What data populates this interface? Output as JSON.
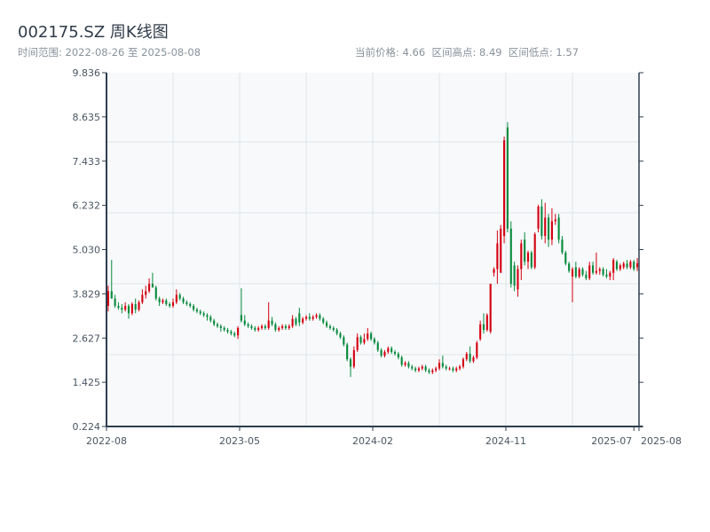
{
  "header": {
    "title": "002175.SZ 周K线图",
    "range_text": "时间范围: 2022-08-26 至 2025-08-08",
    "stats_text": "当前价格: 4.66  区间高点: 8.49  区间低点: 1.57"
  },
  "colors": {
    "up": "#d4000f",
    "down": "#078a3c",
    "plot_bg": "#f7f9fb",
    "axis": "#2e3d4f",
    "grid": "#e1e5ea"
  },
  "chart_data": {
    "type": "candlestick",
    "title": "002175.SZ 周K线图",
    "current_price": 4.66,
    "range_high": 8.49,
    "range_low": 1.57,
    "ylim": [
      0.224,
      9.836
    ],
    "y_ticks": [
      "0.224",
      "1.425",
      "2.627",
      "3.829",
      "5.030",
      "6.232",
      "7.433",
      "8.635",
      "9.836"
    ],
    "x_ticks": [
      {
        "label": "2022-08",
        "week": 0
      },
      {
        "label": "2023-05",
        "week": 39
      },
      {
        "label": "2024-02",
        "week": 78
      },
      {
        "label": "2024-11",
        "week": 117
      },
      {
        "label": "2025-07",
        "week": 154.5
      },
      {
        "label": "2025-08",
        "week": 156
      }
    ],
    "total_weeks": 156,
    "grid": true,
    "ohlc_order": [
      "open",
      "high",
      "low",
      "close"
    ],
    "candles": [
      [
        3.5,
        4.05,
        3.35,
        3.9
      ],
      [
        3.9,
        4.75,
        3.7,
        3.7
      ],
      [
        3.7,
        3.8,
        3.45,
        3.5
      ],
      [
        3.5,
        3.6,
        3.4,
        3.45
      ],
      [
        3.45,
        3.55,
        3.3,
        3.4
      ],
      [
        3.4,
        3.6,
        3.35,
        3.5
      ],
      [
        3.5,
        3.55,
        3.15,
        3.3
      ],
      [
        3.3,
        3.6,
        3.25,
        3.55
      ],
      [
        3.55,
        3.7,
        3.3,
        3.4
      ],
      [
        3.4,
        3.65,
        3.35,
        3.6
      ],
      [
        3.6,
        3.95,
        3.55,
        3.8
      ],
      [
        3.8,
        4.05,
        3.7,
        3.9
      ],
      [
        3.9,
        4.25,
        3.85,
        4.1
      ],
      [
        4.1,
        4.4,
        4.0,
        4.0
      ],
      [
        4.0,
        4.05,
        3.65,
        3.7
      ],
      [
        3.7,
        3.75,
        3.5,
        3.6
      ],
      [
        3.6,
        3.7,
        3.55,
        3.65
      ],
      [
        3.65,
        3.7,
        3.5,
        3.55
      ],
      [
        3.55,
        3.6,
        3.45,
        3.5
      ],
      [
        3.5,
        3.7,
        3.45,
        3.6
      ],
      [
        3.6,
        3.95,
        3.55,
        3.8
      ],
      [
        3.8,
        3.85,
        3.65,
        3.7
      ],
      [
        3.7,
        3.75,
        3.55,
        3.6
      ],
      [
        3.6,
        3.65,
        3.5,
        3.55
      ],
      [
        3.55,
        3.6,
        3.45,
        3.5
      ],
      [
        3.5,
        3.55,
        3.35,
        3.4
      ],
      [
        3.4,
        3.45,
        3.3,
        3.35
      ],
      [
        3.35,
        3.4,
        3.25,
        3.3
      ],
      [
        3.3,
        3.35,
        3.2,
        3.25
      ],
      [
        3.25,
        3.3,
        3.1,
        3.2
      ],
      [
        3.2,
        3.25,
        3.05,
        3.1
      ],
      [
        3.1,
        3.15,
        2.95,
        3.0
      ],
      [
        3.0,
        3.05,
        2.9,
        2.95
      ],
      [
        2.95,
        3.0,
        2.8,
        2.9
      ],
      [
        2.9,
        2.95,
        2.8,
        2.85
      ],
      [
        2.85,
        2.9,
        2.75,
        2.8
      ],
      [
        2.8,
        2.85,
        2.7,
        2.75
      ],
      [
        2.75,
        2.8,
        2.65,
        2.7
      ],
      [
        2.7,
        2.95,
        2.6,
        2.9
      ],
      [
        3.25,
        3.98,
        3.05,
        3.1
      ],
      [
        3.1,
        3.25,
        2.95,
        3.0
      ],
      [
        3.0,
        3.05,
        2.9,
        2.95
      ],
      [
        2.95,
        3.0,
        2.85,
        2.9
      ],
      [
        2.9,
        2.95,
        2.8,
        2.85
      ],
      [
        2.85,
        2.95,
        2.8,
        2.9
      ],
      [
        2.9,
        3.0,
        2.85,
        2.95
      ],
      [
        2.95,
        3.0,
        2.85,
        2.9
      ],
      [
        2.9,
        3.6,
        2.85,
        3.1
      ],
      [
        3.1,
        3.2,
        2.95,
        3.0
      ],
      [
        3.0,
        3.05,
        2.8,
        2.85
      ],
      [
        2.85,
        2.95,
        2.8,
        2.9
      ],
      [
        2.9,
        3.0,
        2.85,
        2.95
      ],
      [
        2.95,
        3.0,
        2.85,
        2.9
      ],
      [
        2.9,
        3.0,
        2.85,
        2.95
      ],
      [
        2.95,
        3.25,
        2.9,
        3.15
      ],
      [
        3.15,
        3.2,
        2.95,
        3.0
      ],
      [
        3.3,
        3.45,
        2.95,
        3.05
      ],
      [
        3.05,
        3.2,
        3.0,
        3.15
      ],
      [
        3.15,
        3.25,
        3.1,
        3.2
      ],
      [
        3.2,
        3.3,
        3.1,
        3.15
      ],
      [
        3.15,
        3.25,
        3.1,
        3.2
      ],
      [
        3.2,
        3.3,
        3.15,
        3.25
      ],
      [
        3.25,
        3.3,
        3.1,
        3.15
      ],
      [
        3.15,
        3.2,
        3.0,
        3.05
      ],
      [
        3.05,
        3.1,
        2.9,
        2.95
      ],
      [
        2.95,
        3.0,
        2.85,
        2.9
      ],
      [
        2.9,
        2.95,
        2.8,
        2.85
      ],
      [
        2.85,
        2.9,
        2.7,
        2.75
      ],
      [
        2.75,
        2.8,
        2.6,
        2.65
      ],
      [
        2.65,
        2.7,
        2.4,
        2.45
      ],
      [
        2.45,
        2.5,
        2.0,
        2.05
      ],
      [
        2.05,
        2.1,
        1.57,
        1.85
      ],
      [
        1.85,
        2.4,
        1.8,
        2.3
      ],
      [
        2.3,
        2.75,
        2.25,
        2.65
      ],
      [
        2.65,
        2.7,
        2.45,
        2.5
      ],
      [
        2.5,
        2.75,
        2.45,
        2.6
      ],
      [
        2.6,
        2.9,
        2.55,
        2.75
      ],
      [
        2.75,
        2.8,
        2.55,
        2.6
      ],
      [
        2.6,
        2.65,
        2.45,
        2.5
      ],
      [
        2.5,
        2.55,
        2.25,
        2.3
      ],
      [
        2.3,
        2.35,
        2.1,
        2.15
      ],
      [
        2.15,
        2.3,
        2.1,
        2.25
      ],
      [
        2.25,
        2.4,
        2.2,
        2.35
      ],
      [
        2.35,
        2.4,
        2.2,
        2.25
      ],
      [
        2.25,
        2.3,
        2.15,
        2.2
      ],
      [
        2.2,
        2.25,
        2.05,
        2.1
      ],
      [
        2.1,
        2.15,
        1.85,
        1.9
      ],
      [
        1.9,
        2.0,
        1.85,
        1.95
      ],
      [
        1.95,
        2.0,
        1.8,
        1.85
      ],
      [
        1.85,
        1.9,
        1.75,
        1.8
      ],
      [
        1.8,
        1.85,
        1.7,
        1.75
      ],
      [
        1.75,
        1.85,
        1.7,
        1.8
      ],
      [
        1.8,
        1.9,
        1.75,
        1.85
      ],
      [
        1.85,
        1.9,
        1.7,
        1.75
      ],
      [
        1.75,
        1.8,
        1.65,
        1.7
      ],
      [
        1.7,
        1.8,
        1.65,
        1.75
      ],
      [
        1.75,
        1.85,
        1.7,
        1.8
      ],
      [
        1.8,
        2.05,
        1.75,
        1.95
      ],
      [
        1.95,
        2.15,
        1.8,
        1.85
      ],
      [
        1.85,
        1.9,
        1.75,
        1.8
      ],
      [
        1.8,
        1.85,
        1.75,
        1.8
      ],
      [
        1.8,
        1.85,
        1.7,
        1.75
      ],
      [
        1.75,
        1.85,
        1.7,
        1.8
      ],
      [
        1.8,
        1.9,
        1.75,
        1.85
      ],
      [
        1.85,
        2.1,
        1.8,
        2.05
      ],
      [
        2.05,
        2.25,
        2.0,
        2.2
      ],
      [
        2.2,
        2.4,
        1.95,
        2.0
      ],
      [
        2.0,
        2.15,
        1.95,
        2.1
      ],
      [
        2.1,
        2.55,
        2.05,
        2.5
      ],
      [
        2.6,
        3.1,
        2.55,
        3.0
      ],
      [
        3.0,
        3.3,
        2.75,
        2.85
      ],
      [
        2.85,
        3.3,
        2.8,
        3.25
      ],
      [
        2.8,
        4.1,
        2.75,
        4.1
      ],
      [
        4.4,
        4.55,
        4.3,
        4.5
      ],
      [
        4.5,
        5.55,
        4.1,
        5.2
      ],
      [
        4.4,
        5.7,
        4.4,
        5.6
      ],
      [
        5.4,
        8.1,
        5.2,
        8.0
      ],
      [
        8.35,
        8.49,
        5.5,
        5.6
      ],
      [
        5.6,
        5.8,
        4.0,
        4.1
      ],
      [
        4.6,
        4.7,
        3.9,
        4.05
      ],
      [
        3.95,
        4.6,
        3.75,
        4.5
      ],
      [
        4.5,
        5.3,
        4.2,
        5.2
      ],
      [
        5.3,
        5.5,
        4.6,
        4.7
      ],
      [
        4.7,
        5.0,
        4.5,
        4.95
      ],
      [
        4.95,
        5.0,
        4.5,
        4.55
      ],
      [
        4.55,
        5.5,
        4.5,
        5.45
      ],
      [
        5.6,
        6.25,
        5.5,
        6.2
      ],
      [
        6.2,
        6.4,
        5.3,
        5.4
      ],
      [
        5.4,
        6.3,
        5.2,
        5.9
      ],
      [
        5.9,
        6.0,
        5.1,
        5.3
      ],
      [
        5.3,
        6.15,
        5.15,
        5.8
      ],
      [
        5.8,
        6.0,
        5.7,
        5.85
      ],
      [
        5.9,
        6.0,
        5.2,
        5.3
      ],
      [
        5.3,
        5.4,
        4.9,
        4.95
      ],
      [
        4.95,
        5.0,
        4.6,
        4.65
      ],
      [
        4.65,
        4.7,
        4.4,
        4.45
      ],
      [
        4.3,
        4.55,
        3.6,
        4.5
      ],
      [
        4.55,
        4.7,
        4.25,
        4.3
      ],
      [
        4.3,
        4.55,
        4.25,
        4.5
      ],
      [
        4.5,
        4.55,
        4.3,
        4.35
      ],
      [
        4.35,
        4.45,
        4.2,
        4.25
      ],
      [
        4.25,
        4.7,
        4.2,
        4.6
      ],
      [
        4.6,
        4.7,
        4.35,
        4.4
      ],
      [
        4.4,
        4.95,
        4.35,
        4.45
      ],
      [
        4.45,
        4.55,
        4.35,
        4.5
      ],
      [
        4.5,
        4.55,
        4.3,
        4.35
      ],
      [
        4.35,
        4.5,
        4.25,
        4.3
      ],
      [
        4.3,
        4.45,
        4.2,
        4.4
      ],
      [
        4.4,
        4.8,
        4.2,
        4.75
      ],
      [
        4.7,
        4.75,
        4.45,
        4.5
      ],
      [
        4.5,
        4.65,
        4.45,
        4.6
      ],
      [
        4.55,
        4.7,
        4.5,
        4.65
      ],
      [
        4.65,
        4.75,
        4.5,
        4.55
      ],
      [
        4.55,
        4.75,
        4.5,
        4.7
      ],
      [
        4.7,
        4.75,
        4.45,
        4.5
      ],
      [
        4.55,
        4.8,
        4.45,
        4.66
      ]
    ]
  }
}
